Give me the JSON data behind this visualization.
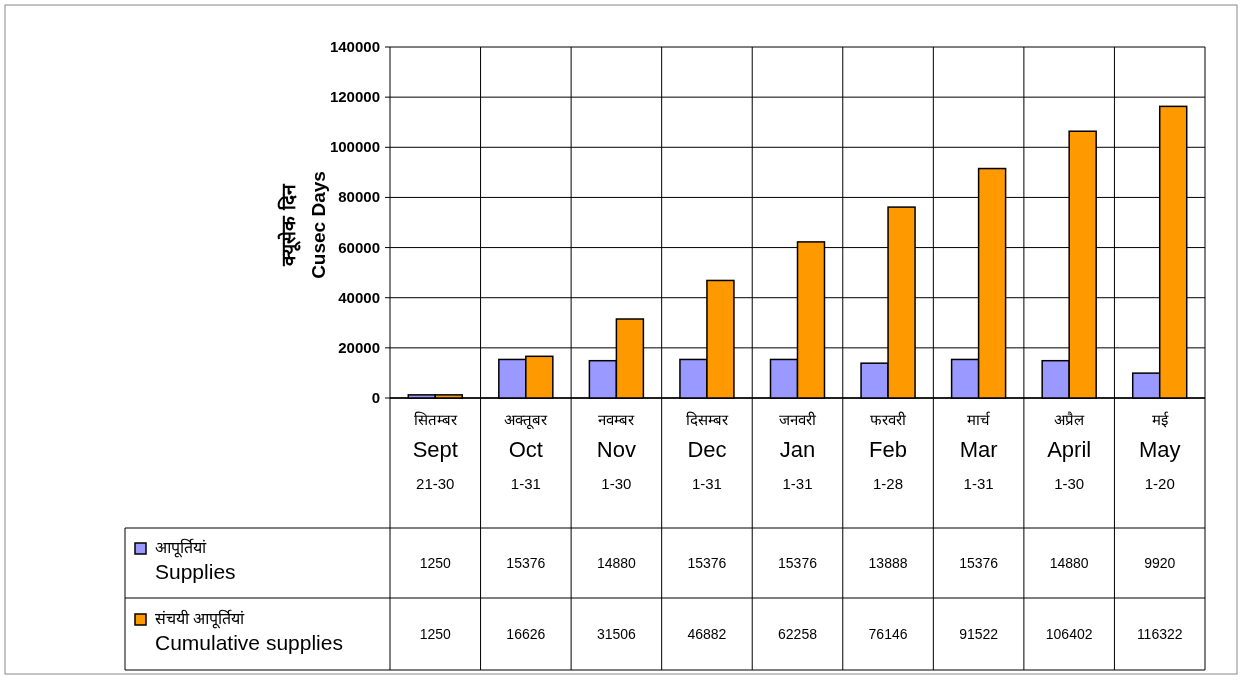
{
  "chart_data": {
    "type": "bar",
    "ylabel": "क्यूसेक दिन\nCusec Days",
    "categories": [
      "सितम्बर\nSept\n21-30",
      "अक्तूबर\nOct\n1-31",
      "नवम्बर\nNov\n1-30",
      "दिसम्बर\nDec\n1-31",
      "जनवरी\nJan\n1-31",
      "फरवरी\nFeb\n1-28",
      "मार्च\nMar\n1-31",
      "अप्रैल\nApril\n1-30",
      "मई\nMay\n1-20"
    ],
    "series": [
      {
        "name": "आपूर्तियां\nSupplies",
        "color": "#9999ff",
        "values": [
          1250,
          15376,
          14880,
          15376,
          15376,
          13888,
          15376,
          14880,
          9920
        ]
      },
      {
        "name": "संचयी आपूर्तियां\nCumulative supplies",
        "color": "#ff9900",
        "values": [
          1250,
          16626,
          31506,
          46882,
          62258,
          76146,
          91522,
          106402,
          116322
        ]
      }
    ],
    "ylim": [
      0,
      140000
    ],
    "yticks": [
      0,
      20000,
      40000,
      60000,
      80000,
      100000,
      120000,
      140000
    ],
    "grid": true,
    "legend": "bottom left",
    "data_labels": true
  }
}
